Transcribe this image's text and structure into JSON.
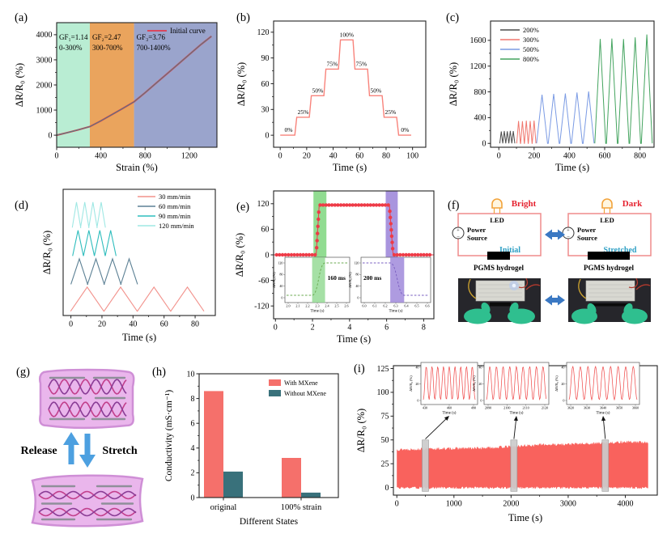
{
  "panels": {
    "a": {
      "label": "(a)"
    },
    "b": {
      "label": "(b)"
    },
    "c": {
      "label": "(c)"
    },
    "d": {
      "label": "(d)"
    },
    "e": {
      "label": "(e)"
    },
    "f": {
      "label": "(f)",
      "led_label": "LED",
      "power_line1": "Power",
      "power_line2": "Source",
      "hydrogel_label": "PGMS hydrogel",
      "left_state": "Initial",
      "right_state": "Stretched",
      "left_led_state": "Bright",
      "right_led_state": "Dark",
      "colors": {
        "state": "#2d9fc4",
        "led_state": "#e52330",
        "wire": "#ef8c8c",
        "arrow": "#3a78c3"
      }
    },
    "g": {
      "label": "(g)",
      "release_label": "Release",
      "stretch_label": "Stretch",
      "colors": {
        "arrow": "#4da0e0",
        "gel": "#eab6ec",
        "gel_edge": "#cf8fd6",
        "chain1": "#c2408c",
        "chain2": "#8a3d96",
        "crosslink": "#8f8f9a"
      }
    },
    "h": {
      "label": "(h)"
    },
    "i": {
      "label": "(i)"
    }
  },
  "chart_data": [
    {
      "panel": "a",
      "type": "line",
      "xlabel": "Strain (%)",
      "ylabel": "ΔR/R₀ (%)",
      "xlim": [
        0,
        1450
      ],
      "ylim": [
        -480,
        4480
      ],
      "xticks": [
        0,
        400,
        800,
        1200
      ],
      "yticks": [
        0,
        1000,
        2000,
        3000,
        4000
      ],
      "legend": [
        {
          "label": "Initial curve",
          "color": "#e03a4e"
        }
      ],
      "legend_position": "top-right",
      "regions": [
        {
          "x0": 0,
          "x1": 300,
          "color": "#b9edd3",
          "gauge_factor": "GF₁=1.14",
          "strain_range": "0-300%"
        },
        {
          "x0": 300,
          "x1": 700,
          "color": "#eaa45d",
          "gauge_factor": "GF₂=2.47",
          "strain_range": "300-700%"
        },
        {
          "x0": 700,
          "x1": 1450,
          "color": "#9aa4cc",
          "gauge_factor": "GF₃=3.76",
          "strain_range": "700-1400%"
        }
      ],
      "series": [
        {
          "name": "Initial curve",
          "color": "#e03a4e",
          "overlay_color": "#2f8f8f",
          "points": [
            [
              0,
              0
            ],
            [
              100,
              105
            ],
            [
              200,
              220
            ],
            [
              300,
              342
            ],
            [
              400,
              570
            ],
            [
              500,
              820
            ],
            [
              600,
              1070
            ],
            [
              700,
              1330
            ],
            [
              800,
              1690
            ],
            [
              900,
              2070
            ],
            [
              1000,
              2450
            ],
            [
              1100,
              2830
            ],
            [
              1200,
              3210
            ],
            [
              1300,
              3590
            ],
            [
              1400,
              3940
            ]
          ]
        }
      ]
    },
    {
      "panel": "b",
      "type": "step-line",
      "xlabel": "Time (s)",
      "ylabel": "ΔR/R₀ (%)",
      "xlim": [
        -5,
        110
      ],
      "ylim": [
        -14,
        133
      ],
      "xticks": [
        0,
        20,
        40,
        60,
        80,
        100
      ],
      "yticks": [
        0,
        30,
        60,
        90,
        120
      ],
      "color": "#f8837b",
      "step_duration_s": 11,
      "ramp_s": 1.5,
      "steps": [
        {
          "strain": "0%",
          "value": 0
        },
        {
          "strain": "25%",
          "value": 21
        },
        {
          "strain": "50%",
          "value": 46
        },
        {
          "strain": "75%",
          "value": 77
        },
        {
          "strain": "100%",
          "value": 111
        },
        {
          "strain": "75%",
          "value": 77
        },
        {
          "strain": "50%",
          "value": 46
        },
        {
          "strain": "25%",
          "value": 21
        },
        {
          "strain": "0%",
          "value": 0
        }
      ]
    },
    {
      "panel": "c",
      "type": "line",
      "xlabel": "Time (s)",
      "ylabel": "ΔR/R₀ (%)",
      "xlim": [
        -47,
        880
      ],
      "ylim": [
        -60,
        1900
      ],
      "xticks": [
        0,
        200,
        400,
        600,
        800
      ],
      "yticks": [
        0,
        400,
        800,
        1200,
        1600
      ],
      "legend_position": "top-left",
      "series": [
        {
          "name": "200%",
          "color": "#4d4d4d",
          "halfwidth_s": 8.5,
          "peaks": [
            [
              14,
              185
            ],
            [
              31,
              192
            ],
            [
              48,
              188
            ],
            [
              65,
              194
            ],
            [
              82,
              190
            ]
          ]
        },
        {
          "name": "300%",
          "color": "#f0776e",
          "halfwidth_s": 10.5,
          "peaks": [
            [
              112,
              348
            ],
            [
              134,
              344
            ],
            [
              156,
              352
            ],
            [
              178,
              347
            ],
            [
              200,
              355
            ]
          ]
        },
        {
          "name": "500%",
          "color": "#7b9be4",
          "halfwidth_s": 31,
          "peaks": [
            [
              245,
              755
            ],
            [
              311,
              768
            ],
            [
              377,
              776
            ],
            [
              443,
              790
            ],
            [
              509,
              806
            ]
          ]
        },
        {
          "name": "800%",
          "color": "#44a45f",
          "halfwidth_s": 31,
          "peaks": [
            [
              575,
              1622
            ],
            [
              641,
              1628
            ],
            [
              707,
              1620
            ],
            [
              773,
              1646
            ],
            [
              839,
              1692
            ]
          ]
        }
      ]
    },
    {
      "panel": "d",
      "type": "line",
      "xlabel": "Time (s)",
      "ylabel": "ΔR/R₀ (%)",
      "xlim": [
        -5,
        93
      ],
      "ylim": [
        0,
        178
      ],
      "xticks": [
        0,
        20,
        40,
        60,
        80
      ],
      "yticks": [],
      "legend_position": "top-right",
      "series": [
        {
          "name": "30 mm/min",
          "color": "#f2928c",
          "baseline": 6,
          "amplitude": 34,
          "halfwidth_s": 10.7,
          "peak_times": [
            10.5,
            32,
            53.5,
            75
          ]
        },
        {
          "name": "60 mm/min",
          "color": "#5d8195",
          "baseline": 44,
          "amplitude": 36,
          "halfwidth_s": 5.4,
          "peak_times": [
            5.4,
            16.1,
            26.8,
            37.5
          ]
        },
        {
          "name": "90 mm/min",
          "color": "#2fbdbd",
          "baseline": 84,
          "amplitude": 36,
          "halfwidth_s": 3.5,
          "peak_times": [
            4.6,
            11.6,
            18.6,
            25.6
          ]
        },
        {
          "name": "120 mm/min",
          "color": "#9fe8e4",
          "baseline": 124,
          "amplitude": 36,
          "halfwidth_s": 2.7,
          "peak_times": [
            3.6,
            8.9,
            14.2,
            19.5
          ]
        }
      ]
    },
    {
      "panel": "e",
      "type": "step-response",
      "xlabel": "Time (s)",
      "ylabel": "ΔR/R₀ (%)",
      "xlim": [
        -0.1,
        8.55
      ],
      "ylim": [
        -150,
        150
      ],
      "xticks": [
        0,
        2,
        4,
        6,
        8
      ],
      "yticks": [
        -120,
        -60,
        0,
        60,
        120
      ],
      "color": "#ee3b47",
      "plateau": 117,
      "rise": {
        "t0": 2.2,
        "t1": 2.36
      },
      "fall": {
        "t0": 6.15,
        "t1": 6.35
      },
      "bands": [
        {
          "x0": 2.05,
          "x1": 2.75,
          "color": "#7ed67e"
        },
        {
          "x0": 5.95,
          "x1": 6.6,
          "color": "#9a82d8"
        }
      ],
      "insets": [
        {
          "response_time": "160 ms",
          "mode": "rise",
          "band_color": "#8ed88e",
          "line_color": "#6aa84f",
          "xticks": [
            "2.0",
            "2.1",
            "2.2",
            "2.3",
            "2.4",
            "2.5",
            "2.6"
          ],
          "yticks": [
            "0",
            "40",
            "80",
            "120"
          ],
          "xlabel": "Time (s)",
          "ylabel": "ΔR/R₀ (%)"
        },
        {
          "response_time": "200 ms",
          "mode": "fall",
          "band_color": "#9a82d8",
          "line_color": "#7a5fc0",
          "xticks": [
            "6.0",
            "6.1",
            "6.2",
            "6.3",
            "6.4",
            "6.5",
            "6.6"
          ],
          "yticks": [
            "0",
            "40",
            "80",
            "120"
          ],
          "xlabel": "Time (s)",
          "ylabel": "ΔR/R₀ (%)"
        }
      ]
    },
    {
      "panel": "h",
      "type": "bar",
      "xlabel": "Different States",
      "ylabel": "Conductivity (mS·cm⁻¹)",
      "categories": [
        "original",
        "100% strain"
      ],
      "ylim": [
        0,
        10
      ],
      "yticks": [
        0,
        2,
        4,
        6,
        8,
        10
      ],
      "legend_position": "top-right",
      "series": [
        {
          "name": "With MXene",
          "color": "#f5706b",
          "values": [
            8.6,
            3.2
          ]
        },
        {
          "name": "Without MXene",
          "color": "#39717b",
          "values": [
            2.1,
            0.4
          ]
        }
      ]
    },
    {
      "panel": "i",
      "type": "area-band",
      "xlabel": "Time (s)",
      "ylabel": "ΔR/R₀ (%)",
      "xlim": [
        -60,
        4560
      ],
      "ylim": [
        -8,
        128
      ],
      "xticks": [
        0,
        1000,
        2000,
        3000,
        4000
      ],
      "yticks": [
        0,
        25,
        50,
        75,
        100,
        125
      ],
      "color": "#f9625d",
      "envelope_top": [
        [
          0,
          40
        ],
        [
          500,
          40.5
        ],
        [
          1000,
          41
        ],
        [
          1500,
          41.5
        ],
        [
          2000,
          43
        ],
        [
          2500,
          45
        ],
        [
          3000,
          45.5
        ],
        [
          3500,
          46.5
        ],
        [
          4000,
          48
        ],
        [
          4400,
          47.5
        ]
      ],
      "envelope_bottom": 0,
      "marker_times": [
        500,
        2050,
        3650
      ],
      "insets": [
        {
          "xticks": [
            "430",
            "460",
            "490"
          ],
          "yticks": [
            "0",
            "20",
            "40"
          ],
          "xlabel": "Time (s)",
          "ylabel": "ΔR/R₀ (%)",
          "cycles": 9
        },
        {
          "xticks": [
            "2090",
            "2100",
            "2110",
            "2120"
          ],
          "yticks": [
            "0",
            "20",
            "40"
          ],
          "xlabel": "Time (s)",
          "ylabel": "ΔR/R₀ (%)",
          "cycles": 9
        },
        {
          "xticks": [
            "3620",
            "3630",
            "3640",
            "3650",
            "3660"
          ],
          "yticks": [
            "0",
            "20",
            "40"
          ],
          "xlabel": "Time (s)",
          "ylabel": "ΔR/R₀ (%)",
          "cycles": 9
        }
      ]
    }
  ]
}
